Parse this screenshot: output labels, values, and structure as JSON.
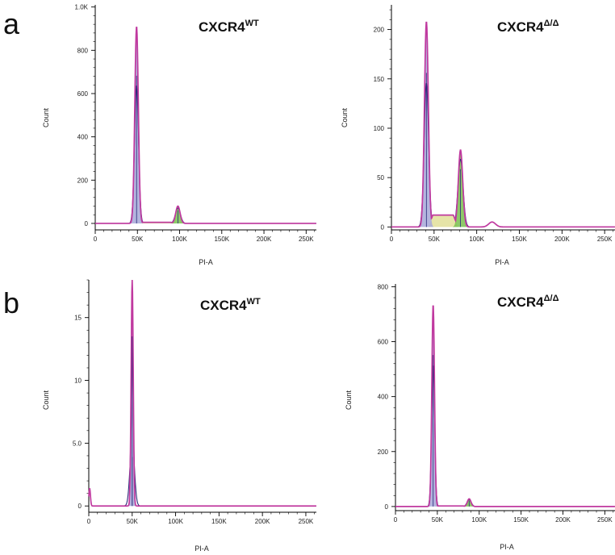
{
  "panels": [
    {
      "letter": "a"
    },
    {
      "letter": "b"
    }
  ],
  "colors": {
    "overlay_outline": "#c0399f",
    "data_trace": "#2a2a7a",
    "g1_fill": "#a7a8d8",
    "s_phase_fill": "#e6e4a8",
    "g2_fill": "#79c04f",
    "debris_line": "#222222",
    "axis": "#000000"
  },
  "chart_data": [
    {
      "type": "histogram",
      "panel": "a",
      "title": "CXCR4",
      "title_superscript": "WT",
      "xlabel": "PI-A",
      "ylabel": "Count",
      "xlim": [
        0,
        262144
      ],
      "ylim": [
        -30,
        1010
      ],
      "xticks": [
        0,
        50000,
        100000,
        150000,
        200000,
        250000
      ],
      "xtick_labels": [
        "0",
        "50K",
        "100K",
        "150K",
        "200K",
        "250K"
      ],
      "yticks": [
        0,
        200,
        400,
        600,
        800,
        1000
      ],
      "ytick_labels": [
        "0",
        "200",
        "400",
        "600",
        "800",
        "1.0K"
      ],
      "peaks": [
        {
          "phase": "G1",
          "center": 49000,
          "height": 910,
          "width": 2100
        },
        {
          "phase": "G2",
          "center": 98000,
          "height": 80,
          "width": 2600
        }
      ],
      "s_phase_level": 5,
      "debris": []
    },
    {
      "type": "histogram",
      "panel": "a",
      "title": "CXCR4",
      "title_superscript": "Δ/Δ",
      "xlabel": "PI-A",
      "ylabel": "Count",
      "xlim": [
        0,
        262144
      ],
      "ylim": [
        -3,
        225
      ],
      "xticks": [
        0,
        50000,
        100000,
        150000,
        200000,
        250000
      ],
      "xtick_labels": [
        "0",
        "50K",
        "100K",
        "150K",
        "200K",
        "250K"
      ],
      "yticks": [
        0,
        50,
        100,
        150,
        200
      ],
      "ytick_labels": [
        "0",
        "50",
        "100",
        "150",
        "200"
      ],
      "peaks": [
        {
          "phase": "G1",
          "center": 41000,
          "height": 208,
          "width": 2300
        },
        {
          "phase": "G2",
          "center": 81000,
          "height": 78,
          "width": 2600
        }
      ],
      "s_phase_level": 12,
      "debris": [
        {
          "center": 118000,
          "height": 5,
          "width": 4000
        }
      ]
    },
    {
      "type": "histogram",
      "panel": "b",
      "title": "CXCR4",
      "title_superscript": "WT",
      "xlabel": "PI-A",
      "ylabel": "Count",
      "xlim": [
        0,
        262144
      ],
      "ylim": [
        -0.5,
        18
      ],
      "xticks": [
        0,
        50000,
        100000,
        150000,
        200000,
        250000
      ],
      "xtick_labels": [
        "0",
        "50K",
        "100K",
        "150K",
        "200K",
        "250K"
      ],
      "yticks": [
        0,
        5,
        10,
        15
      ],
      "ytick_labels": [
        "0",
        "5.0",
        "10",
        "15"
      ],
      "peaks": [
        {
          "phase": "G1",
          "center": 50000,
          "height": 18,
          "width": 1200
        },
        {
          "phase": "G1-trace",
          "center": 50000,
          "height": 5.2,
          "width": 2200
        }
      ],
      "s_phase_level": 0,
      "debris": [
        {
          "center": 1000,
          "height": 1.4,
          "width": 900
        }
      ]
    },
    {
      "type": "histogram",
      "panel": "b",
      "title": "CXCR4",
      "title_superscript": "Δ/Δ",
      "xlabel": "PI-A",
      "ylabel": "Count",
      "xlim": [
        0,
        262144
      ],
      "ylim": [
        -15,
        810
      ],
      "xticks": [
        0,
        50000,
        100000,
        150000,
        200000,
        250000
      ],
      "xtick_labels": [
        "0",
        "50K",
        "100K",
        "150K",
        "200K",
        "250K"
      ],
      "yticks": [
        0,
        200,
        400,
        600,
        800
      ],
      "ytick_labels": [
        "0",
        "200",
        "400",
        "600",
        "800"
      ],
      "peaks": [
        {
          "phase": "G1",
          "center": 45000,
          "height": 735,
          "width": 1600
        },
        {
          "phase": "G2",
          "center": 88000,
          "height": 28,
          "width": 2200
        }
      ],
      "s_phase_level": 2,
      "debris": []
    }
  ]
}
